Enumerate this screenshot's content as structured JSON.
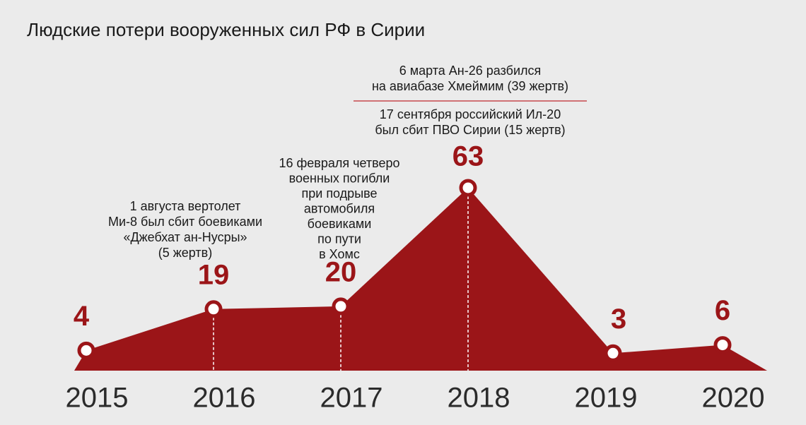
{
  "chart_data": {
    "type": "area",
    "title": "Людские потери вооруженных сил РФ в Сирии",
    "categories": [
      "2015",
      "2016",
      "2017",
      "2018",
      "2019",
      "2020"
    ],
    "values": [
      4,
      19,
      20,
      63,
      3,
      6
    ],
    "color": "#9b1518",
    "annotations": [
      [
        "1 августа вертолет",
        "Ми-8 был сбит боевиками",
        "«Джебхат ан-Нусры»",
        "(5 жертв)"
      ],
      [
        "16 февраля четверо",
        "военных погибли",
        "при подрыве",
        "автомобиля",
        "боевиками",
        "по пути",
        "в Хомс"
      ],
      [
        "6 марта Ан-26 разбился",
        "на авиабазе Хмеймим (39 жертв)"
      ],
      [
        "17 сентября российский Ил-20",
        "был сбит ПВО Сирии (15 жертв)"
      ]
    ]
  }
}
